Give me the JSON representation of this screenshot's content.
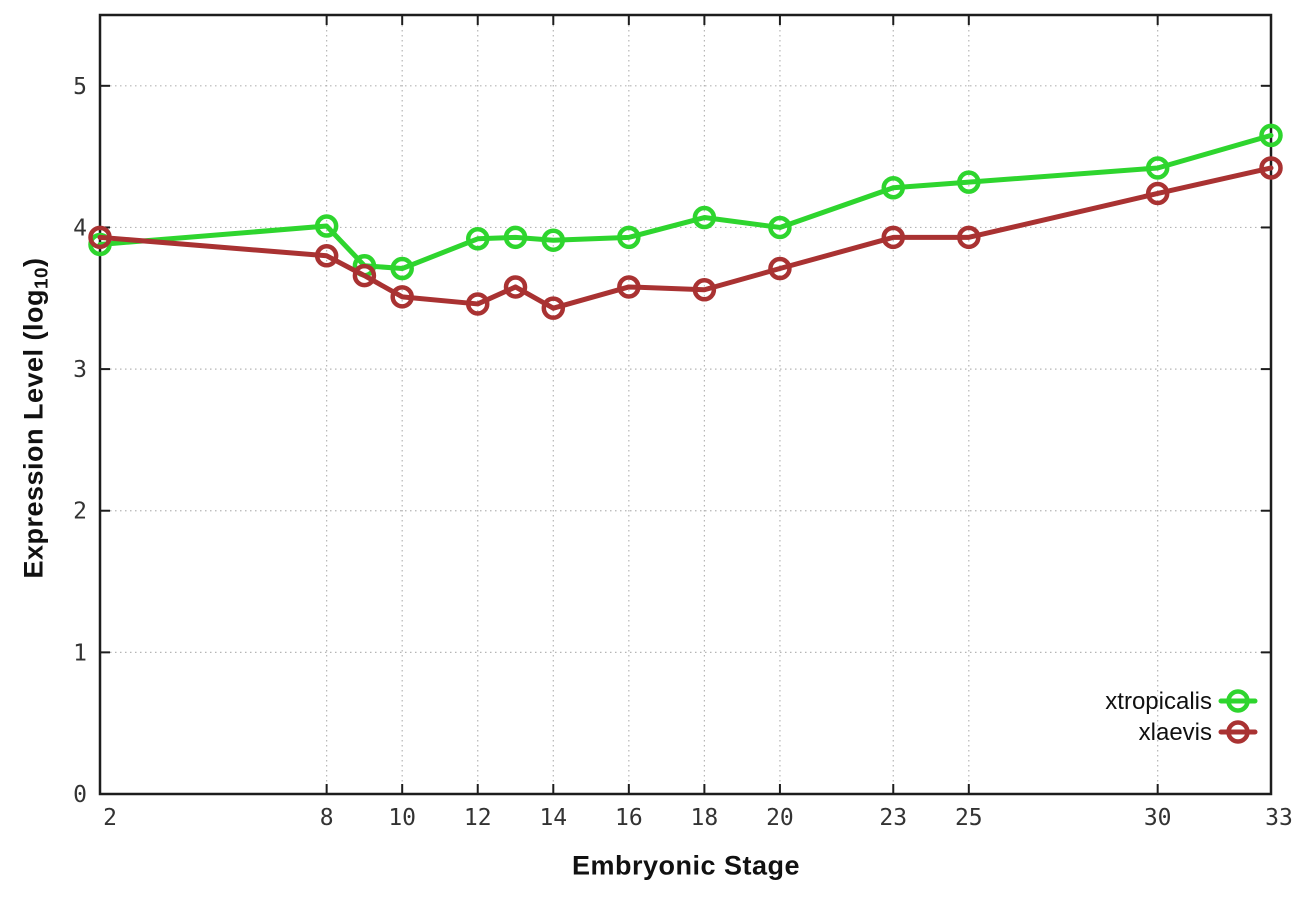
{
  "chart_data": {
    "type": "line",
    "title": "",
    "xlabel": "Embryonic Stage",
    "ylabel": "Expression Level (log10)",
    "ylabel_prefix": "Expression Level (log",
    "ylabel_sub": "10",
    "ylabel_suffix": ")",
    "xlim": [
      2,
      33
    ],
    "ylim": [
      0,
      5.5
    ],
    "grid": true,
    "legend_position": "bottom-right-inside",
    "x": [
      2,
      8,
      9,
      10,
      12,
      13,
      14,
      16,
      18,
      20,
      23,
      25,
      30,
      33
    ],
    "x_ticks": [
      2,
      8,
      10,
      12,
      14,
      16,
      18,
      20,
      23,
      25,
      30,
      33
    ],
    "x_tick_labels": [
      "2",
      "8",
      "10",
      "12",
      "14",
      "16",
      "18",
      "20",
      "23",
      "25",
      "30",
      "33"
    ],
    "y_ticks": [
      0,
      1,
      2,
      3,
      4,
      5
    ],
    "y_tick_labels": [
      "0",
      "1",
      "2",
      "3",
      "4",
      "5"
    ],
    "series": [
      {
        "name": "xtropicalis",
        "color": "#2ed52e",
        "values": [
          3.88,
          4.01,
          3.73,
          3.71,
          3.92,
          3.93,
          3.91,
          3.93,
          4.07,
          4.0,
          4.28,
          4.32,
          4.42,
          4.65
        ]
      },
      {
        "name": "xlaevis",
        "color": "#a93232",
        "values": [
          3.93,
          3.8,
          3.66,
          3.51,
          3.46,
          3.58,
          3.43,
          3.58,
          3.56,
          3.71,
          3.93,
          3.93,
          4.24,
          4.42
        ]
      }
    ],
    "style": {
      "border_color": "#1d1d1d",
      "grid_color": "#b5b5b5",
      "tick_label_color": "#333333",
      "legend_text_color": "#111111",
      "background": "#ffffff"
    }
  }
}
